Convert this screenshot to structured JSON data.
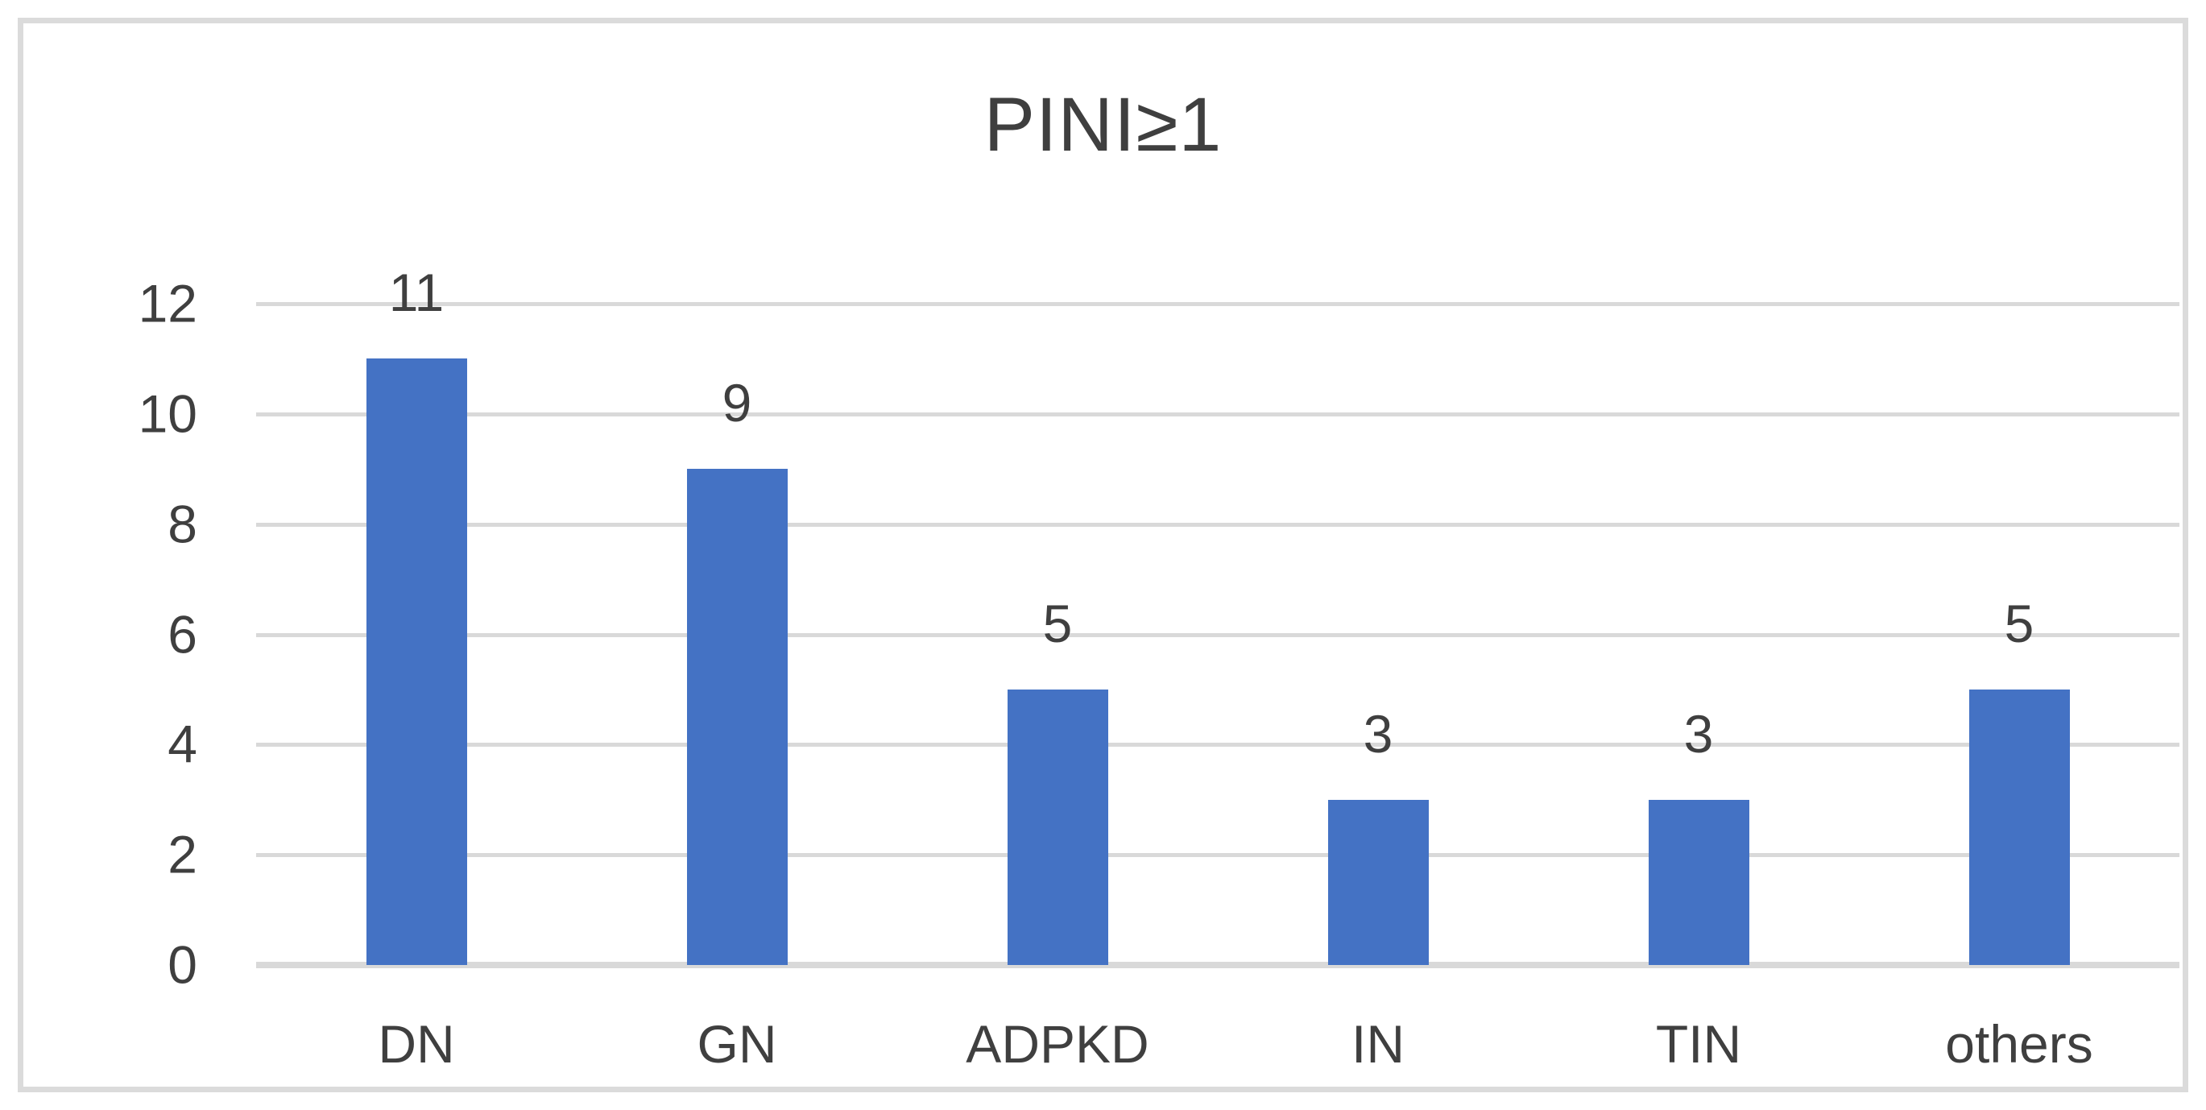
{
  "chart_data": {
    "type": "bar",
    "title": "PINI≥1",
    "categories": [
      "DN",
      "GN",
      "ADPKD",
      "IN",
      "TIN",
      "others"
    ],
    "values": [
      11,
      9,
      5,
      3,
      3,
      5
    ],
    "y_ticks": [
      0,
      2,
      4,
      6,
      8,
      10,
      12
    ],
    "ylim": [
      0,
      12
    ],
    "xlabel": "",
    "ylabel": "",
    "grid": "horizontal",
    "legend_position": "none",
    "colors": {
      "bar": "#4472C4",
      "gridline": "#D9D9D9",
      "axis_line": "#D9D9D9",
      "text": "#3F3F3F",
      "frame_border": "#DBDBDB",
      "background": "#FFFFFF"
    }
  }
}
